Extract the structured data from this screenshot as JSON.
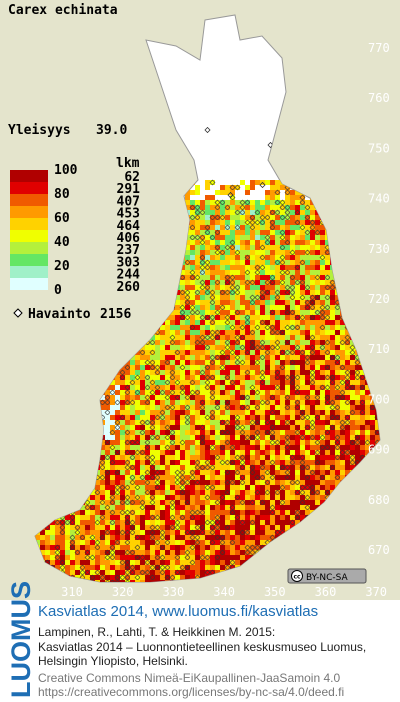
{
  "header": {
    "title": "Carex echinata"
  },
  "frequency": {
    "label": "Yleisyys",
    "value": "39.0"
  },
  "legend": {
    "scale_labels": [
      100,
      80,
      60,
      40,
      20,
      0
    ],
    "count_header": "lkm",
    "counts": [
      62,
      291,
      407,
      453,
      464,
      406,
      237,
      303,
      244,
      260
    ],
    "colors": [
      "#b00000",
      "#e00000",
      "#f05a00",
      "#ff9a00",
      "#ffd200",
      "#f0ff00",
      "#b4f03c",
      "#64e664",
      "#a0f0c8",
      "#e0ffff"
    ]
  },
  "observations": {
    "label": "Havainto",
    "count": 2156
  },
  "northing_ticks": [
    770,
    760,
    750,
    740,
    730,
    720,
    710,
    700,
    690,
    680,
    670
  ],
  "easting_ticks": [
    310,
    320,
    330,
    340,
    350,
    360,
    370
  ],
  "badge": {
    "icon": "cc",
    "text": "BY-NC-SA"
  },
  "footer": {
    "logo": "LUOMUS",
    "heading": "Kasviatlas 2014, www.luomus.fi/kasviatlas",
    "citation": [
      "Lampinen, R., Lahti, T. & Heikkinen M. 2015:",
      "Kasviatlas 2014 – Luonnontieteellinen keskusmuseo Luomus,",
      "Helsingin Yliopisto, Helsinki."
    ],
    "license": [
      "Creative Commons Nimeä-EiKaupallinen-JaaSamoin 4.0",
      "https://creativecommons.org/licenses/by-nc-sa/4.0/deed.fi"
    ]
  }
}
